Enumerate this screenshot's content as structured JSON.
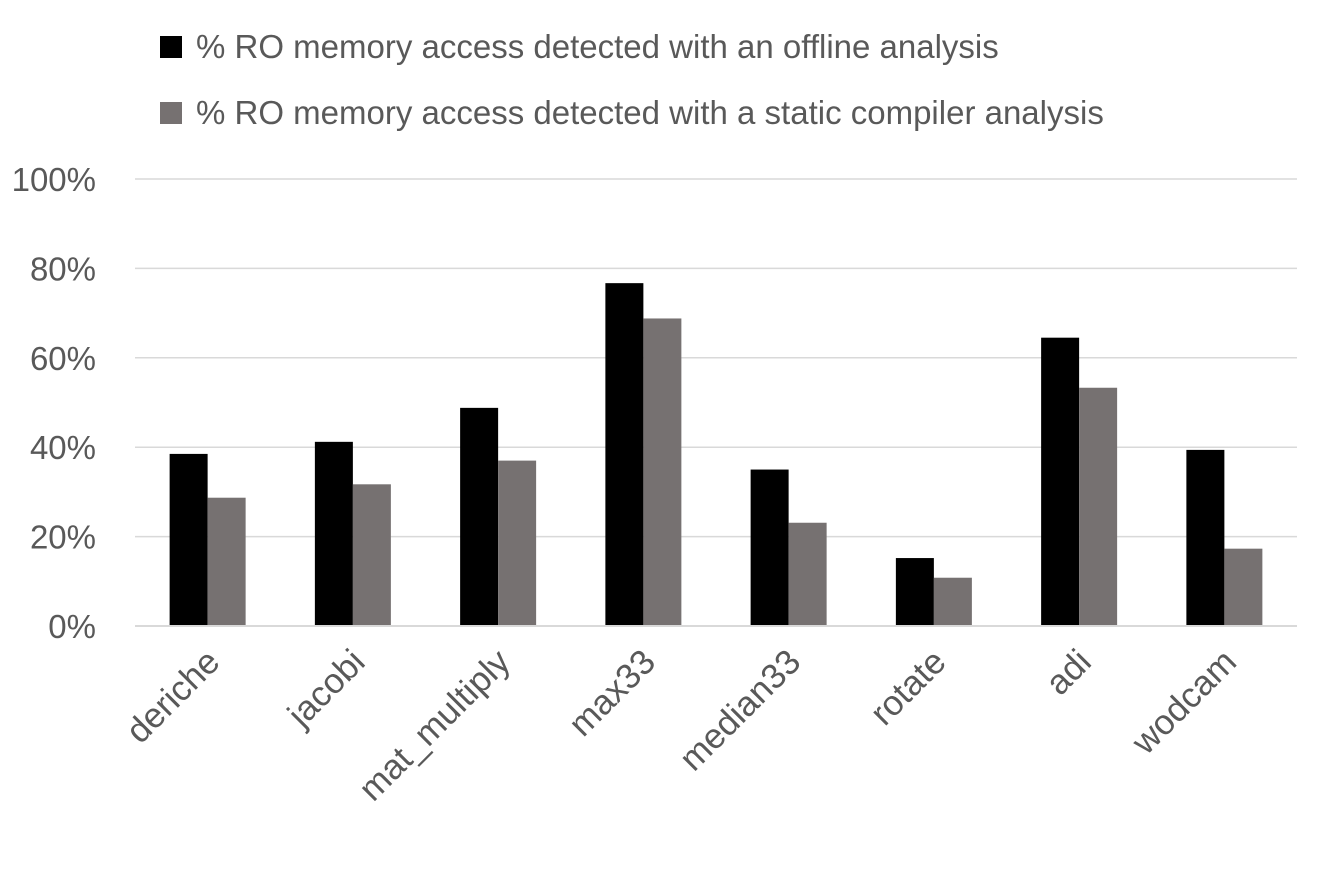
{
  "chart_data": {
    "type": "bar",
    "categories": [
      "deriche",
      "jacobi",
      "mat_multiply",
      "max33",
      "median33",
      "rotate",
      "adi",
      "wodcam"
    ],
    "series": [
      {
        "name": "% RO memory access detected with an offline analysis",
        "color": "#000000",
        "values": [
          38.5,
          41.2,
          48.8,
          76.7,
          35.0,
          15.2,
          64.5,
          39.4
        ]
      },
      {
        "name": "% RO memory access detected with a static compiler analysis",
        "color": "#767171",
        "values": [
          28.7,
          31.7,
          37.0,
          68.8,
          23.1,
          10.8,
          53.3,
          17.3
        ]
      }
    ],
    "ylim": [
      0,
      100
    ],
    "yticks": [
      0,
      20,
      40,
      60,
      80,
      100
    ],
    "ytick_labels": [
      "0%",
      "20%",
      "40%",
      "60%",
      "80%",
      "100%"
    ],
    "grid": true,
    "legend": "top-left",
    "title": "",
    "xlabel": "",
    "ylabel": ""
  }
}
